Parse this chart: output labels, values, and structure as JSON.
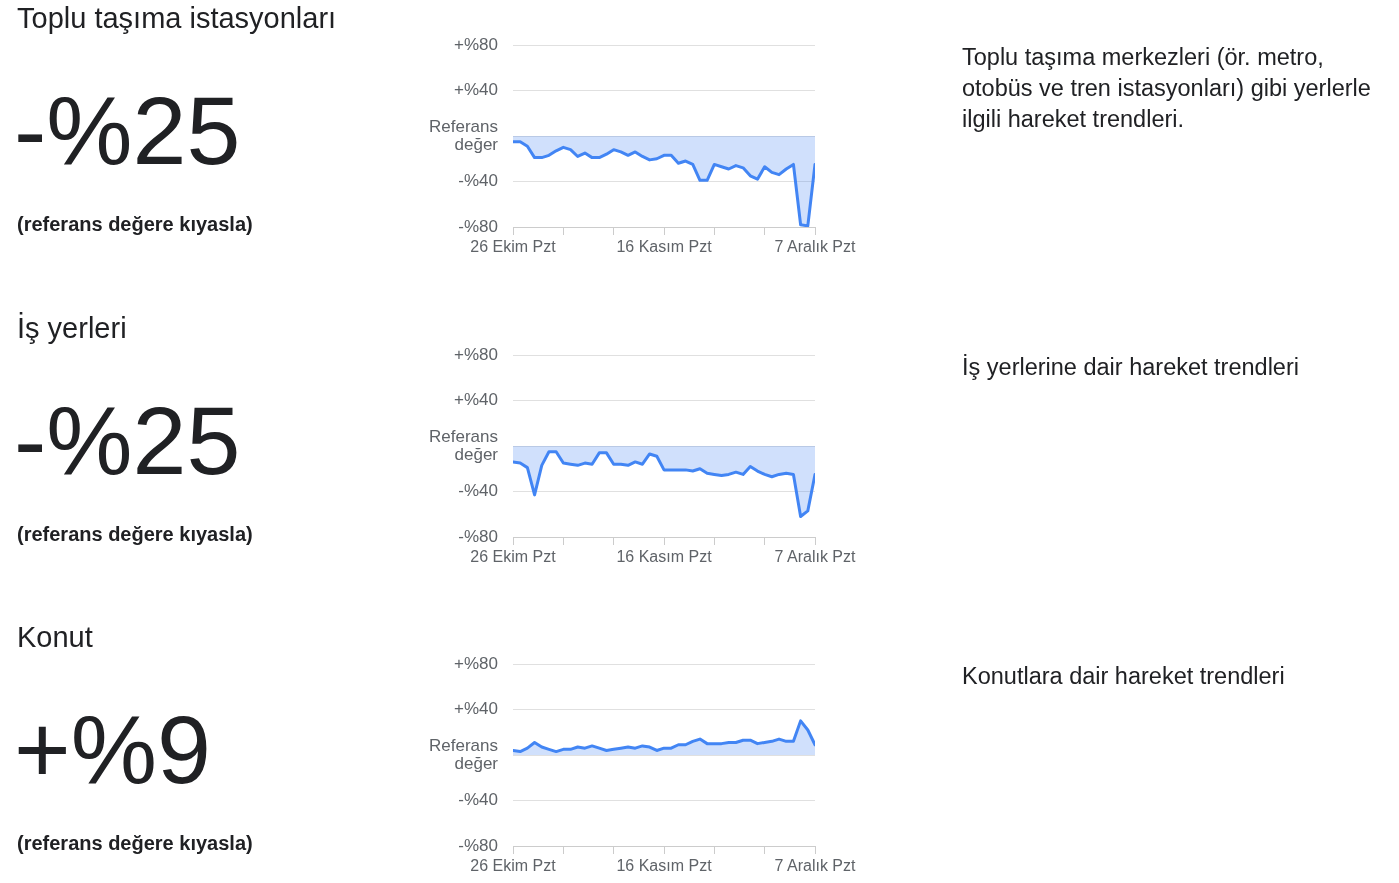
{
  "chart_data": [
    {
      "type": "other",
      "title": "Toplu taşıma istasyonları",
      "annotations": [
        "-%25",
        "(referans değere kıyasla)"
      ]
    },
    {
      "type": "area",
      "annotations": [
        "Toplu taşıma merkezleri (ör. metro, otobüs ve tren istasyonları) gibi yerlerle ilgili hareket trendleri."
      ],
      "x": [
        "--10-26",
        "--10-27",
        "--10-28",
        "--10-29",
        "--10-30",
        "--10-31",
        "--11-01",
        "--11-02",
        "--11-03",
        "--11-04",
        "--11-05",
        "--11-06",
        "--11-07",
        "--11-08",
        "--11-09",
        "--11-10",
        "--11-11",
        "--11-12",
        "--11-13",
        "--11-14",
        "--11-15",
        "--11-16",
        "--11-17",
        "--11-18",
        "--11-19",
        "--11-20",
        "--11-21",
        "--11-22",
        "--11-23",
        "--11-24",
        "--11-25",
        "--11-26",
        "--11-27",
        "--11-28",
        "--11-29",
        "--11-30",
        "--12-01",
        "--12-02",
        "--12-03",
        "--12-04",
        "--12-05",
        "--12-06",
        "--12-07"
      ],
      "series": [
        {
          "color": "#4285f4",
          "values": [
            -5,
            -5,
            -9,
            -19,
            -19,
            -17,
            -13,
            -10,
            -12,
            -18,
            -15,
            -19,
            -19,
            -16,
            -12,
            -14,
            -17,
            -14,
            -18,
            -21,
            -20,
            -17,
            -17,
            -24,
            -22,
            -25,
            -39,
            -39,
            -25,
            -27,
            -29,
            -26,
            -28,
            -35,
            -38,
            -27,
            -32,
            -34,
            -29,
            -25,
            -78,
            -79,
            -25
          ]
        }
      ],
      "xlim": [
        "--10-26",
        "--12-07"
      ],
      "xticks": [
        {
          "value": "--10-26",
          "label": "26 Ekim Pzt"
        },
        {
          "value": "--11-02",
          "label": null
        },
        {
          "value": "--11-09",
          "label": null
        },
        {
          "value": "--11-16",
          "label": "16 Kasım Pzt"
        },
        {
          "value": "--11-23",
          "label": null
        },
        {
          "value": "--11-30",
          "label": null
        },
        {
          "value": "--12-07",
          "label": "7 Aralık Pzt"
        }
      ],
      "ylim": [
        -80,
        80
      ],
      "yticks": [
        {
          "value": 80,
          "label": "+%80"
        },
        {
          "value": 40,
          "label": "+%40"
        },
        {
          "value": 0,
          "label": "Referans değer"
        },
        {
          "value": -40,
          "label": "-%40"
        },
        {
          "value": -80,
          "label": "-%80"
        }
      ],
      "grid": "y",
      "marker": "none"
    },
    {
      "type": "other",
      "title": "İş yerleri",
      "annotations": [
        "-%25",
        "(referans değere kıyasla)"
      ]
    },
    {
      "type": "area",
      "annotations": [
        "İş yerlerine dair hareket trendleri"
      ],
      "x": [
        "--10-26",
        "--10-27",
        "--10-28",
        "--10-29",
        "--10-30",
        "--10-31",
        "--11-01",
        "--11-02",
        "--11-03",
        "--11-04",
        "--11-05",
        "--11-06",
        "--11-07",
        "--11-08",
        "--11-09",
        "--11-10",
        "--11-11",
        "--11-12",
        "--11-13",
        "--11-14",
        "--11-15",
        "--11-16",
        "--11-17",
        "--11-18",
        "--11-19",
        "--11-20",
        "--11-21",
        "--11-22",
        "--11-23",
        "--11-24",
        "--11-25",
        "--11-26",
        "--11-27",
        "--11-28",
        "--11-29",
        "--11-30",
        "--12-01",
        "--12-02",
        "--12-03",
        "--12-04",
        "--12-05",
        "--12-06",
        "--12-07"
      ],
      "series": [
        {
          "color": "#4285f4",
          "values": [
            -14,
            -15,
            -19,
            -43,
            -17,
            -5,
            -5,
            -15,
            -16,
            -17,
            -15,
            -16,
            -6,
            -6,
            -16,
            -16,
            -17,
            -14,
            -16,
            -7,
            -9,
            -21,
            -21,
            -21,
            -21,
            -22,
            -20,
            -24,
            -25,
            -26,
            -25,
            -23,
            -25,
            -18,
            -22,
            -25,
            -27,
            -25,
            -24,
            -25,
            -62,
            -57,
            -25
          ]
        }
      ],
      "xlim": [
        "--10-26",
        "--12-07"
      ],
      "xticks": [
        {
          "value": "--10-26",
          "label": "26 Ekim Pzt"
        },
        {
          "value": "--11-02",
          "label": null
        },
        {
          "value": "--11-09",
          "label": null
        },
        {
          "value": "--11-16",
          "label": "16 Kasım Pzt"
        },
        {
          "value": "--11-23",
          "label": null
        },
        {
          "value": "--11-30",
          "label": null
        },
        {
          "value": "--12-07",
          "label": "7 Aralık Pzt"
        }
      ],
      "ylim": [
        -80,
        80
      ],
      "yticks": [
        {
          "value": 80,
          "label": "+%80"
        },
        {
          "value": 40,
          "label": "+%40"
        },
        {
          "value": 0,
          "label": "Referans değer"
        },
        {
          "value": -40,
          "label": "-%40"
        },
        {
          "value": -80,
          "label": "-%80"
        }
      ],
      "grid": "y",
      "marker": "none"
    },
    {
      "type": "other",
      "title": "Konut",
      "annotations": [
        "+%9",
        "(referans değere kıyasla)"
      ]
    },
    {
      "type": "area",
      "annotations": [
        "Konutlara dair hareket trendleri"
      ],
      "x": [
        "--10-26",
        "--10-27",
        "--10-28",
        "--10-29",
        "--10-30",
        "--10-31",
        "--11-01",
        "--11-02",
        "--11-03",
        "--11-04",
        "--11-05",
        "--11-06",
        "--11-07",
        "--11-08",
        "--11-09",
        "--11-10",
        "--11-11",
        "--11-12",
        "--11-13",
        "--11-14",
        "--11-15",
        "--11-16",
        "--11-17",
        "--11-18",
        "--11-19",
        "--11-20",
        "--11-21",
        "--11-22",
        "--11-23",
        "--11-24",
        "--11-25",
        "--11-26",
        "--11-27",
        "--11-28",
        "--11-29",
        "--11-30",
        "--12-01",
        "--12-02",
        "--12-03",
        "--12-04",
        "--12-05",
        "--12-06",
        "--12-07"
      ],
      "series": [
        {
          "color": "#4285f4",
          "values": [
            4,
            3,
            6,
            11,
            7,
            5,
            3,
            5,
            5,
            7,
            6,
            8,
            6,
            4,
            5,
            6,
            7,
            6,
            8,
            7,
            4,
            6,
            6,
            9,
            9,
            12,
            14,
            10,
            10,
            10,
            11,
            11,
            13,
            13,
            10,
            11,
            12,
            14,
            12,
            12,
            30,
            22,
            9
          ]
        }
      ],
      "xlim": [
        "--10-26",
        "--12-07"
      ],
      "xticks": [
        {
          "value": "--10-26",
          "label": "26 Ekim Pzt"
        },
        {
          "value": "--11-02",
          "label": null
        },
        {
          "value": "--11-09",
          "label": null
        },
        {
          "value": "--11-16",
          "label": "16 Kasım Pzt"
        },
        {
          "value": "--11-23",
          "label": null
        },
        {
          "value": "--11-30",
          "label": null
        },
        {
          "value": "--12-07",
          "label": "7 Aralık Pzt"
        }
      ],
      "ylim": [
        -80,
        80
      ],
      "yticks": [
        {
          "value": 80,
          "label": "+%80"
        },
        {
          "value": 40,
          "label": "+%40"
        },
        {
          "value": 0,
          "label": "Referans değer"
        },
        {
          "value": -40,
          "label": "-%40"
        },
        {
          "value": -80,
          "label": "-%80"
        }
      ],
      "grid": "y",
      "marker": "none"
    }
  ]
}
